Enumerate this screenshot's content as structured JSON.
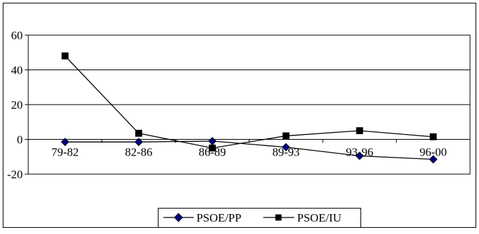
{
  "chart_data": {
    "type": "line",
    "categories": [
      "79-82",
      "82-86",
      "86-89",
      "89-93",
      "93-96",
      "96-00"
    ],
    "ylim": [
      -20,
      60
    ],
    "yticks": [
      -20,
      0,
      20,
      40,
      60
    ],
    "ytick_labels": [
      "-20",
      "0",
      "20",
      "40",
      "60"
    ],
    "grid": true,
    "legend_position": "bottom",
    "series": [
      {
        "name": "PSOE/PP",
        "marker": "diamond",
        "color": "#000080",
        "values": [
          -1.5,
          -1.5,
          -1,
          -4.5,
          -9.5,
          -11.5
        ]
      },
      {
        "name": "PSOE/IU",
        "marker": "square",
        "color": "#000000",
        "values": [
          48,
          3.5,
          -5,
          2,
          5,
          1.5
        ]
      }
    ]
  }
}
